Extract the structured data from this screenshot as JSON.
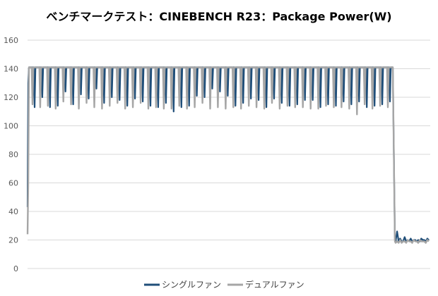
{
  "chart_data": {
    "type": "line",
    "title": "ベンチマークテスト：CINEBENCH R23：Package Power(W)",
    "xlabel": "",
    "ylabel": "",
    "ylim": [
      0,
      160
    ],
    "yticks": [
      0,
      20,
      40,
      60,
      80,
      100,
      120,
      140,
      160
    ],
    "grid": true,
    "legend": "bottom",
    "series": [
      {
        "name": "シングルファン",
        "color": "#1f4e79",
        "start": [
          43,
          130,
          141
        ],
        "dips": [
          113,
          120,
          113,
          114,
          124,
          115,
          122,
          119,
          126,
          116,
          120,
          118,
          114,
          119,
          117,
          114,
          113,
          116,
          110,
          113,
          114,
          121,
          120,
          126,
          124,
          121,
          114,
          116,
          119,
          118,
          113,
          119,
          116,
          114,
          115,
          118,
          118,
          113,
          115,
          114,
          117,
          115,
          117,
          113,
          114,
          115,
          117
        ],
        "tail": [
          19,
          26,
          19,
          21,
          19,
          19,
          22,
          19,
          20,
          19,
          21,
          19,
          20,
          20,
          19,
          20,
          19,
          21,
          20,
          20,
          19,
          21,
          20
        ]
      },
      {
        "name": "デュアルファン",
        "color": "#a6a6a6",
        "start": [
          24,
          60,
          141
        ],
        "dips": [
          115,
          113,
          114,
          112,
          117,
          115,
          112,
          116,
          113,
          112,
          114,
          116,
          112,
          113,
          116,
          112,
          113,
          112,
          112,
          114,
          112,
          113,
          116,
          112,
          113,
          112,
          113,
          112,
          114,
          113,
          112,
          116,
          112,
          114,
          113,
          113,
          112,
          112,
          114,
          113,
          113,
          112,
          108,
          115,
          112,
          114,
          113
        ],
        "tail": [
          18,
          19,
          18,
          20,
          18,
          19,
          19,
          18,
          20,
          19,
          19,
          18,
          20,
          19,
          19,
          18,
          20,
          19,
          19,
          19,
          18,
          20,
          19
        ]
      }
    ]
  }
}
